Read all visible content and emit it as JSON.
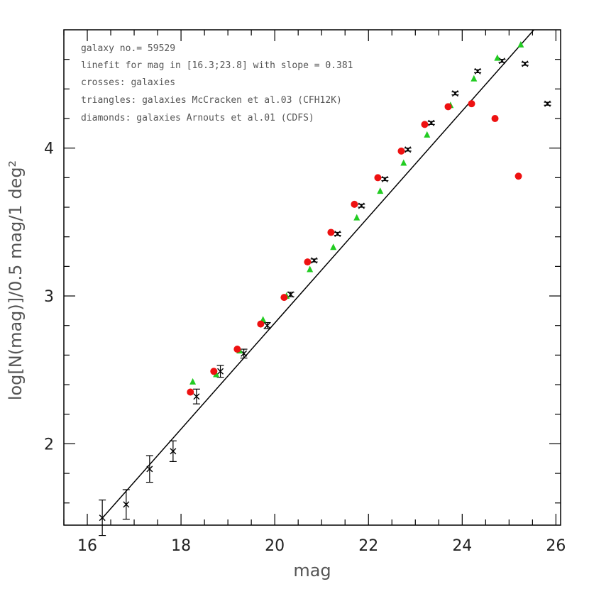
{
  "chart_data": {
    "type": "scatter",
    "xlabel": "mag",
    "ylabel": "log[N(mag)]/0.5 mag/1 deg²",
    "xlim": [
      15.5,
      26.1
    ],
    "ylim": [
      1.45,
      4.8
    ],
    "x_ticks": [
      16,
      18,
      20,
      22,
      24,
      26
    ],
    "y_ticks": [
      2,
      3,
      4
    ],
    "grid": false,
    "annotations": [
      "galaxy no.= 59529",
      "linefit for mag in [16.3;23.8] with slope = 0.381",
      "crosses: galaxies",
      "triangles: galaxies McCracken et al.03 (CFH12K)",
      "diamonds: galaxies Arnouts et al.01 (CDFS)"
    ],
    "fit_line": {
      "x": [
        16.3,
        25.53
      ],
      "y": [
        1.49,
        4.8
      ],
      "slope": 0.381,
      "color": "#000000"
    },
    "series": [
      {
        "marker": "cross",
        "color": "#000000",
        "x": [
          16.32,
          16.83,
          17.33,
          17.83,
          18.33,
          18.84,
          19.34,
          19.84,
          20.34,
          20.84,
          21.34,
          21.85,
          22.35,
          22.84,
          23.34,
          23.85,
          24.33,
          24.85,
          25.34,
          25.82
        ],
        "y": [
          1.5,
          1.59,
          1.83,
          1.95,
          2.32,
          2.49,
          2.61,
          2.8,
          3.01,
          3.24,
          3.42,
          3.61,
          3.79,
          3.99,
          4.17,
          4.37,
          4.52,
          4.59,
          4.57,
          4.3
        ],
        "err": [
          0.12,
          0.1,
          0.09,
          0.07,
          0.05,
          0.04,
          0.03,
          0.02,
          0.015,
          0.01,
          0.01,
          0.01,
          0.01,
          0.01,
          0.01,
          0.01,
          0.01,
          0.01,
          0.01,
          0.01
        ]
      },
      {
        "marker": "triangle",
        "color": "#22cc22",
        "x": [
          18.25,
          18.75,
          19.25,
          19.75,
          20.25,
          20.75,
          21.25,
          21.75,
          22.25,
          22.75,
          23.25,
          23.75,
          24.25,
          24.75,
          25.25
        ],
        "y": [
          2.42,
          2.47,
          2.63,
          2.84,
          3.0,
          3.18,
          3.33,
          3.53,
          3.71,
          3.9,
          4.09,
          4.29,
          4.47,
          4.61,
          4.7
        ]
      },
      {
        "marker": "circle",
        "color": "#ee1111",
        "x": [
          18.2,
          18.7,
          19.2,
          19.7,
          20.2,
          20.7,
          21.2,
          21.7,
          22.2,
          22.7,
          23.2,
          23.7,
          24.2,
          24.7,
          25.2
        ],
        "y": [
          2.35,
          2.49,
          2.64,
          2.81,
          2.99,
          3.23,
          3.43,
          3.62,
          3.8,
          3.98,
          4.16,
          4.28,
          4.3,
          4.2,
          3.81
        ]
      }
    ]
  }
}
